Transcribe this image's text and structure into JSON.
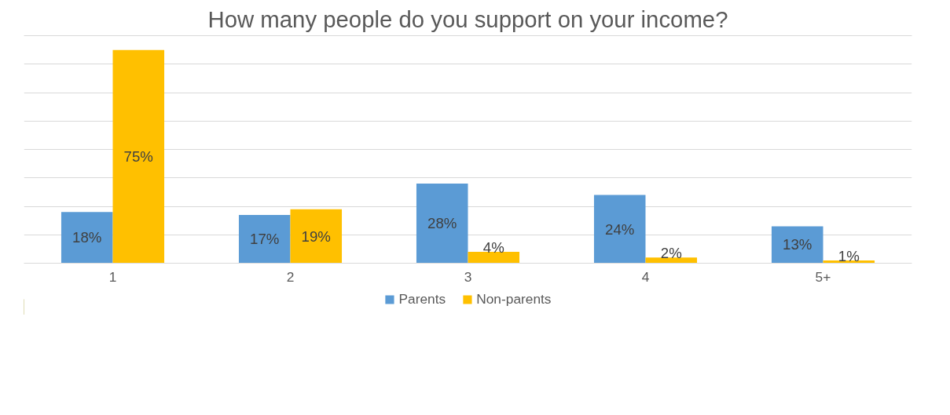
{
  "chart_data": {
    "type": "bar",
    "title": "How many people do you support on your income?",
    "categories": [
      "1",
      "2",
      "3",
      "4",
      "5+"
    ],
    "series": [
      {
        "name": "Parents",
        "color": "#5b9bd5",
        "values": [
          18,
          17,
          28,
          24,
          13
        ],
        "value_labels": [
          "18%",
          "17%",
          "28%",
          "24%",
          "13%"
        ]
      },
      {
        "name": "Non-parents",
        "color": "#ffc000",
        "values": [
          75,
          19,
          4,
          2,
          1
        ],
        "value_labels": [
          "75%",
          "19%",
          "4%",
          "2%",
          "1%"
        ]
      }
    ],
    "ylim": [
      0,
      80
    ],
    "yticks": [
      {
        "value": 0,
        "label": null
      },
      {
        "value": 10,
        "label": null
      },
      {
        "value": 20,
        "label": null
      },
      {
        "value": 30,
        "label": null
      },
      {
        "value": 40,
        "label": null
      },
      {
        "value": 50,
        "label": null
      },
      {
        "value": 60,
        "label": null
      },
      {
        "value": 70,
        "label": null
      },
      {
        "value": 80,
        "label": null
      }
    ],
    "tick_labels": "x",
    "grid": "y",
    "legend": "bottom"
  }
}
